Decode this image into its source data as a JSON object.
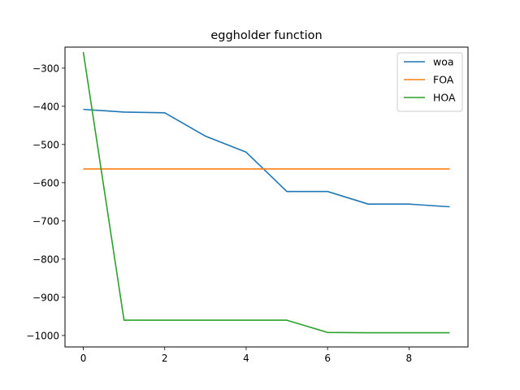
{
  "chart_data": {
    "type": "line",
    "title": "eggholder function",
    "xlabel": "",
    "ylabel": "",
    "x": [
      0,
      1,
      2,
      3,
      4,
      5,
      6,
      7,
      8,
      9
    ],
    "xlim": [
      -0.45,
      9.45
    ],
    "ylim": [
      -1030,
      -245
    ],
    "xticks": [
      0,
      2,
      4,
      6,
      8
    ],
    "yticks": [
      -300,
      -400,
      -500,
      -600,
      -700,
      -800,
      -900,
      -1000
    ],
    "xtick_labels": [
      "0",
      "2",
      "4",
      "6",
      "8"
    ],
    "ytick_labels": [
      "−300",
      "−400",
      "−500",
      "−600",
      "−700",
      "−800",
      "−900",
      "−1000"
    ],
    "grid": false,
    "legend_position": "top-right",
    "series": [
      {
        "name": "woa",
        "color": "#1f77b4",
        "values": [
          -408,
          -415,
          -417,
          -478,
          -520,
          -623,
          -623,
          -656,
          -656,
          -663
        ]
      },
      {
        "name": "FOA",
        "color": "#ff7f0e",
        "values": [
          -564,
          -564,
          -564,
          -564,
          -564,
          -564,
          -564,
          -564,
          -564,
          -564
        ]
      },
      {
        "name": "HOA",
        "color": "#2ca02c",
        "values": [
          -258,
          -960,
          -960,
          -960,
          -960,
          -960,
          -992,
          -993,
          -993,
          -993
        ]
      }
    ]
  }
}
